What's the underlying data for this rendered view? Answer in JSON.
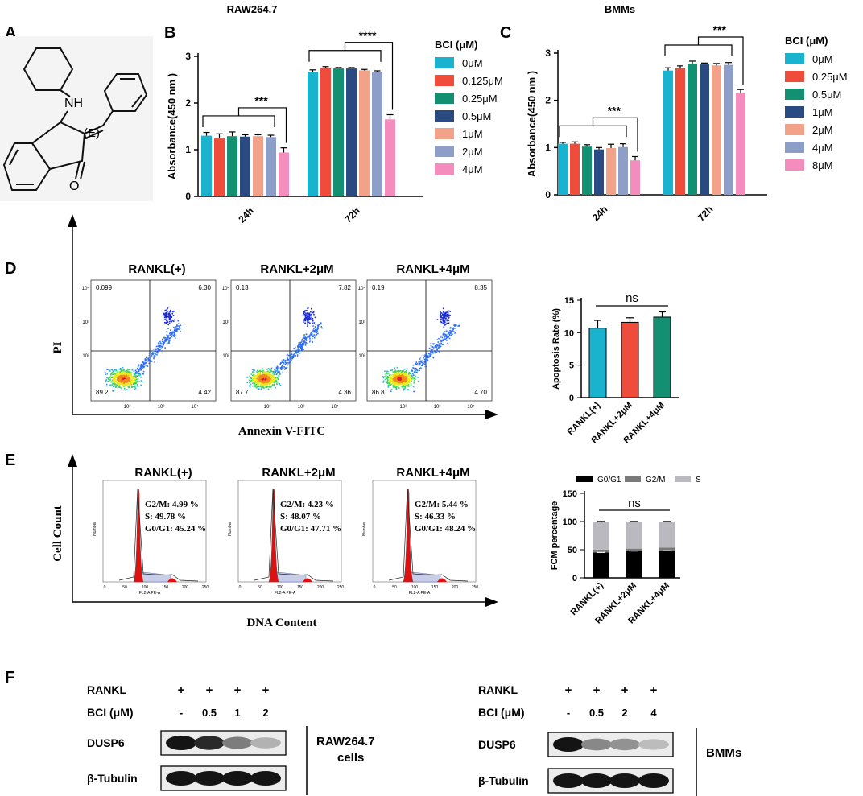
{
  "panels": {
    "a": "A",
    "b": "B",
    "c": "C",
    "d": "D",
    "e": "E",
    "f": "F"
  },
  "structure": {
    "nh": "NH",
    "e": "(E)",
    "o": "O"
  },
  "chart_data": [
    {
      "id": "B",
      "type": "bar",
      "title": "RAW264.7",
      "ylabel": "Absorbance(450 nm )",
      "ylim": [
        0,
        3
      ],
      "yticks": [
        "0",
        "1",
        "2",
        "3"
      ],
      "categories": [
        "24h",
        "72h"
      ],
      "legend_title": "BCI (μM)",
      "series": [
        {
          "name": "0μM",
          "color": "#1ab3cf",
          "values": [
            1.3,
            2.67
          ],
          "err": [
            0.07,
            0.04
          ]
        },
        {
          "name": "0.125μM",
          "color": "#ef4c3b",
          "values": [
            1.24,
            2.75
          ],
          "err": [
            0.1,
            0.03
          ]
        },
        {
          "name": "0.25μM",
          "color": "#139072",
          "values": [
            1.29,
            2.74
          ],
          "err": [
            0.09,
            0.02
          ]
        },
        {
          "name": "0.5μM",
          "color": "#2a4b82",
          "values": [
            1.28,
            2.74
          ],
          "err": [
            0.04,
            0.02
          ]
        },
        {
          "name": "1μM",
          "color": "#f3a28a",
          "values": [
            1.29,
            2.7
          ],
          "err": [
            0.03,
            0.02
          ]
        },
        {
          "name": "2μM",
          "color": "#8d9ec9",
          "values": [
            1.27,
            2.67
          ],
          "err": [
            0.04,
            0.02
          ]
        },
        {
          "name": "4μM",
          "color": "#f48cbd",
          "values": [
            0.94,
            1.65
          ],
          "err": [
            0.1,
            0.1
          ]
        }
      ],
      "sig": [
        "***",
        "****"
      ]
    },
    {
      "id": "C",
      "type": "bar",
      "title": "BMMs",
      "ylabel": "Absorbance(450 nm )",
      "ylim": [
        0,
        3
      ],
      "yticks": [
        "0",
        "1",
        "2",
        "3"
      ],
      "categories": [
        "24h",
        "72h"
      ],
      "legend_title": "BCI (μM)",
      "series": [
        {
          "name": "0μM",
          "color": "#1ab3cf",
          "values": [
            1.08,
            2.63
          ],
          "err": [
            0.03,
            0.06
          ]
        },
        {
          "name": "0.25μM",
          "color": "#ef4c3b",
          "values": [
            1.08,
            2.68
          ],
          "err": [
            0.04,
            0.05
          ]
        },
        {
          "name": "0.5μM",
          "color": "#139072",
          "values": [
            1.02,
            2.78
          ],
          "err": [
            0.04,
            0.05
          ]
        },
        {
          "name": "1μM",
          "color": "#2a4b82",
          "values": [
            0.96,
            2.76
          ],
          "err": [
            0.04,
            0.03
          ]
        },
        {
          "name": "2μM",
          "color": "#f3a28a",
          "values": [
            0.99,
            2.74
          ],
          "err": [
            0.08,
            0.04
          ]
        },
        {
          "name": "4μM",
          "color": "#8d9ec9",
          "values": [
            1.01,
            2.75
          ],
          "err": [
            0.07,
            0.05
          ]
        },
        {
          "name": "8μM",
          "color": "#f48cbd",
          "values": [
            0.73,
            2.15
          ],
          "err": [
            0.08,
            0.08
          ]
        }
      ],
      "sig": [
        "***",
        "***"
      ]
    },
    {
      "id": "D-bar",
      "type": "bar",
      "ylabel": "Apoptosis Rate (%)",
      "ylim": [
        0,
        15
      ],
      "yticks": [
        "0",
        "5",
        "10",
        "15"
      ],
      "categories": [
        "RANKL(+)",
        "RANKL+2μM",
        "RANKL+4μM"
      ],
      "colors": [
        "#1ab3cf",
        "#ef4c3b",
        "#139072"
      ],
      "values": [
        10.7,
        11.6,
        12.4
      ],
      "err": [
        1.2,
        0.7,
        0.8
      ],
      "sig": "ns"
    },
    {
      "id": "E-bar",
      "type": "bar",
      "stacked": true,
      "ylabel": "FCM percentage",
      "ylim": [
        0,
        150
      ],
      "yticks": [
        "0",
        "50",
        "100",
        "150"
      ],
      "categories": [
        "RANKL(+)",
        "RANKL+2μM",
        "RANKL+4μM"
      ],
      "series": [
        {
          "name": "G0/G1",
          "color": "#000000",
          "values": [
            45.24,
            47.71,
            48.24
          ]
        },
        {
          "name": "G2/M",
          "color": "#7a7a7a",
          "values": [
            4.99,
            4.23,
            5.44
          ]
        },
        {
          "name": "S",
          "color": "#b9b9bf",
          "values": [
            49.78,
            48.07,
            46.33
          ]
        }
      ],
      "sig": "ns"
    }
  ],
  "flow_d": {
    "titles": [
      "RANKL(+)",
      "RANKL+2μM",
      "RANKL+4μM"
    ],
    "quadrants": [
      {
        "ul": "0.099",
        "ur": "6.30",
        "ll": "89.2",
        "lr": "4.42"
      },
      {
        "ul": "0.13",
        "ur": "7.82",
        "ll": "87.7",
        "lr": "4.36"
      },
      {
        "ul": "0.19",
        "ur": "8.35",
        "ll": "86.8",
        "lr": "4.70"
      }
    ],
    "ylabel": "PI",
    "xlabel": "Annexin V-FITC",
    "yticks": [
      "10⁴",
      "10³",
      "10²"
    ],
    "xticks": [
      "10²",
      "10³",
      "10⁴"
    ]
  },
  "flow_e": {
    "titles": [
      "RANKL(+)",
      "RANKL+2μM",
      "RANKL+4μM"
    ],
    "stats": [
      {
        "g2m": "G2/M: 4.99 %",
        "s": "S: 49.78 %",
        "g0g1": "G0/G1: 45.24 %"
      },
      {
        "g2m": "G2/M: 4.23 %",
        "s": "S: 48.07 %",
        "g0g1": "G0/G1: 47.71 %"
      },
      {
        "g2m": "G2/M: 5.44 %",
        "s": "S: 46.33 %",
        "g0g1": "G0/G1: 48.24 %"
      }
    ],
    "ylabel": "Cell Count",
    "xlabel": "DNA Content",
    "hist_xlabel": "FL2-A PE-A",
    "hist_ylabel": "Number",
    "hist_xticks": [
      "0",
      "50",
      "100",
      "150",
      "200",
      "250"
    ]
  },
  "western": {
    "left": {
      "rankl": "RANKL",
      "bci": "BCI (μM)",
      "signs": [
        "+",
        "+",
        "+",
        "+"
      ],
      "doses": [
        "-",
        "0.5",
        "1",
        "2"
      ],
      "band1": "DUSP6",
      "band2": "β-Tubulin",
      "cell": "RAW264.7",
      "cell2": "cells",
      "intensity": [
        1.0,
        0.9,
        0.5,
        0.25
      ]
    },
    "right": {
      "rankl": "RANKL",
      "bci": "BCI (μM)",
      "signs": [
        "+",
        "+",
        "+",
        "+"
      ],
      "doses": [
        "-",
        "0.5",
        "2",
        "4"
      ],
      "band1": "DUSP6",
      "band2": "β-Tubulin",
      "cell": "BMMs",
      "intensity": [
        1.0,
        0.45,
        0.4,
        0.2
      ]
    }
  }
}
